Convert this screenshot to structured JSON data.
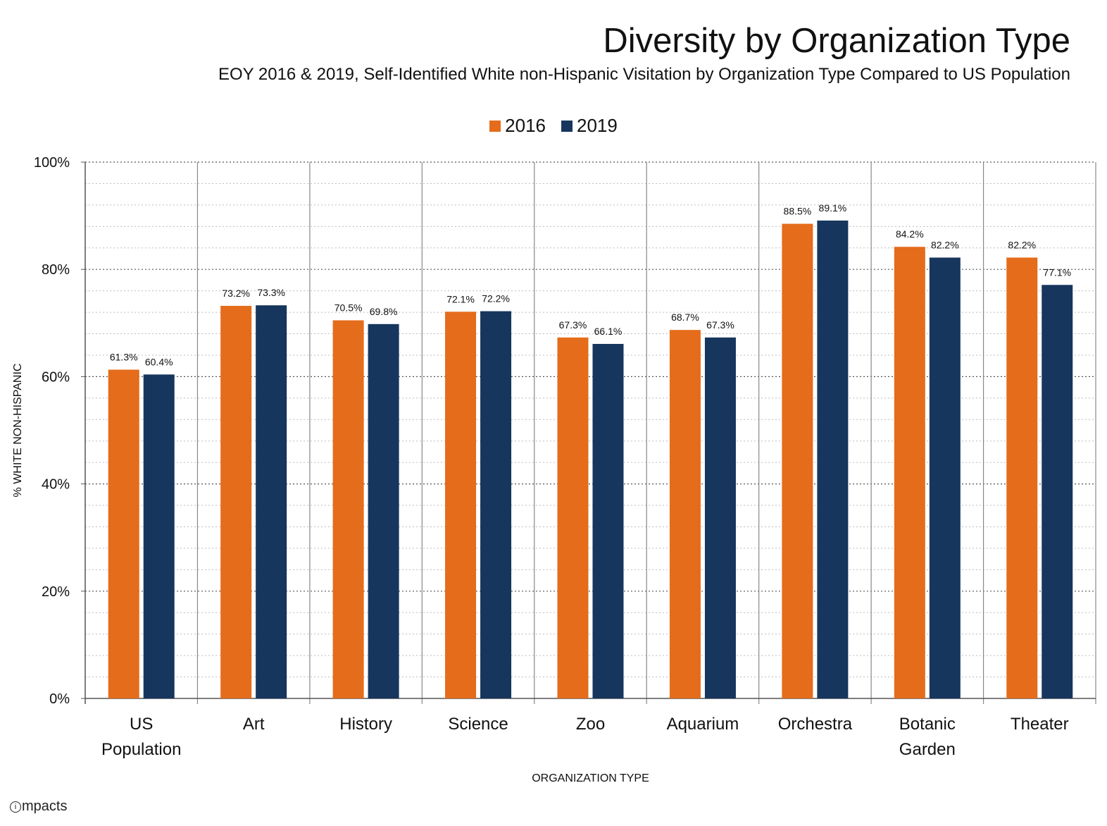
{
  "logo": {
    "mark": "i",
    "text": "mpacts"
  },
  "chart_data": {
    "type": "bar",
    "title": "Diversity by Organization Type",
    "subtitle": "EOY 2016 & 2019, Self-Identified White non-Hispanic Visitation by Organization Type Compared to US Population",
    "xlabel": "ORGANIZATION TYPE",
    "ylabel": "% WHITE NON-HISPANIC",
    "ylim": [
      0,
      100
    ],
    "yticks": [
      "0%",
      "20%",
      "40%",
      "60%",
      "80%",
      "100%"
    ],
    "legend_position": "top-center",
    "grid": true,
    "categories": [
      "US Population",
      "Art",
      "History",
      "Science",
      "Zoo",
      "Aquarium",
      "Orchestra",
      "Botanic Garden",
      "Theater"
    ],
    "category_lines": [
      [
        "US",
        "Population"
      ],
      [
        "Art"
      ],
      [
        "History"
      ],
      [
        "Science"
      ],
      [
        "Zoo"
      ],
      [
        "Aquarium"
      ],
      [
        "Orchestra"
      ],
      [
        "Botanic",
        "Garden"
      ],
      [
        "Theater"
      ]
    ],
    "series": [
      {
        "name": "2016",
        "color": "#E46C1B",
        "values": [
          61.3,
          73.2,
          70.5,
          72.1,
          67.3,
          68.7,
          88.5,
          84.2,
          82.2
        ],
        "labels": [
          "61.3%",
          "73.2%",
          "70.5%",
          "72.1%",
          "67.3%",
          "68.7%",
          "88.5%",
          "84.2%",
          "82.2%"
        ]
      },
      {
        "name": "2019",
        "color": "#17365D",
        "values": [
          60.4,
          73.3,
          69.8,
          72.2,
          66.1,
          67.3,
          89.1,
          82.2,
          77.1
        ],
        "labels": [
          "60.4%",
          "73.3%",
          "69.8%",
          "72.2%",
          "66.1%",
          "67.3%",
          "89.1%",
          "82.2%",
          "77.1%"
        ]
      }
    ]
  }
}
